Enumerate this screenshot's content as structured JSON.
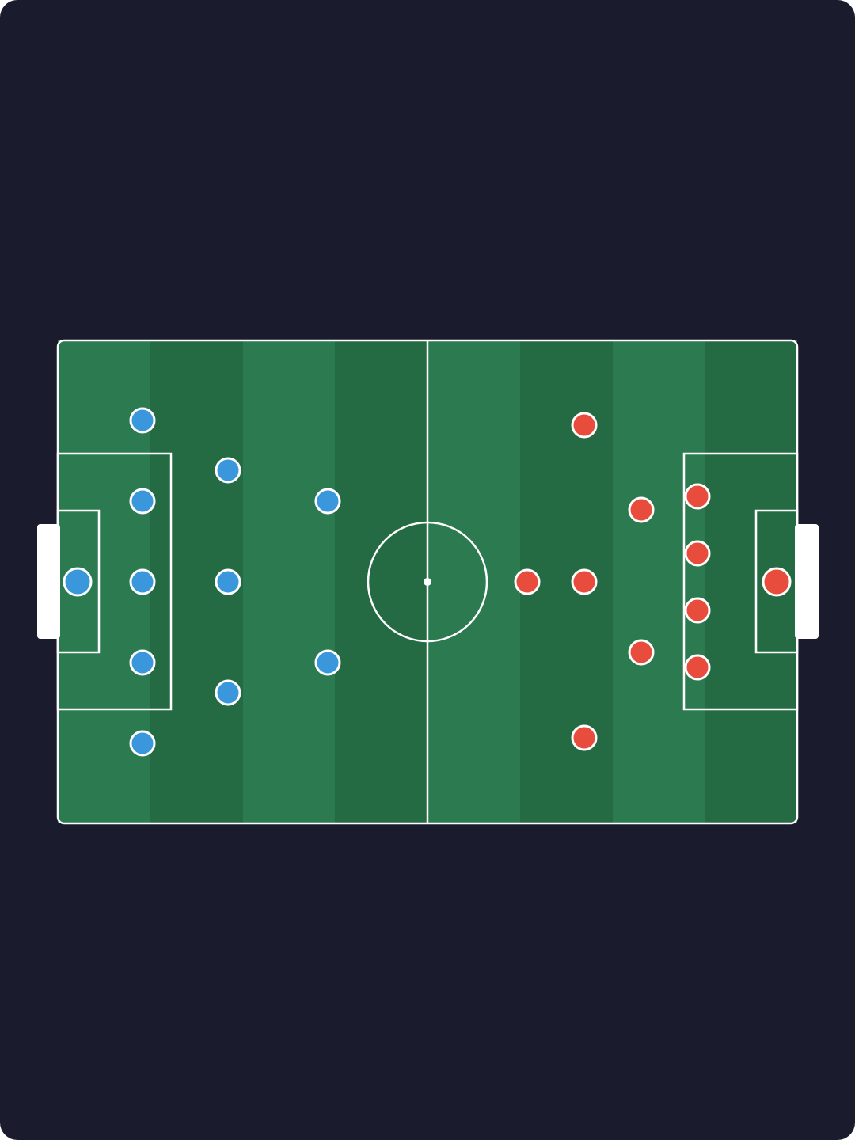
{
  "teams": [
    {
      "color": "#3a97dc"
    },
    {
      "color": "#e74c3c"
    }
  ]
}
